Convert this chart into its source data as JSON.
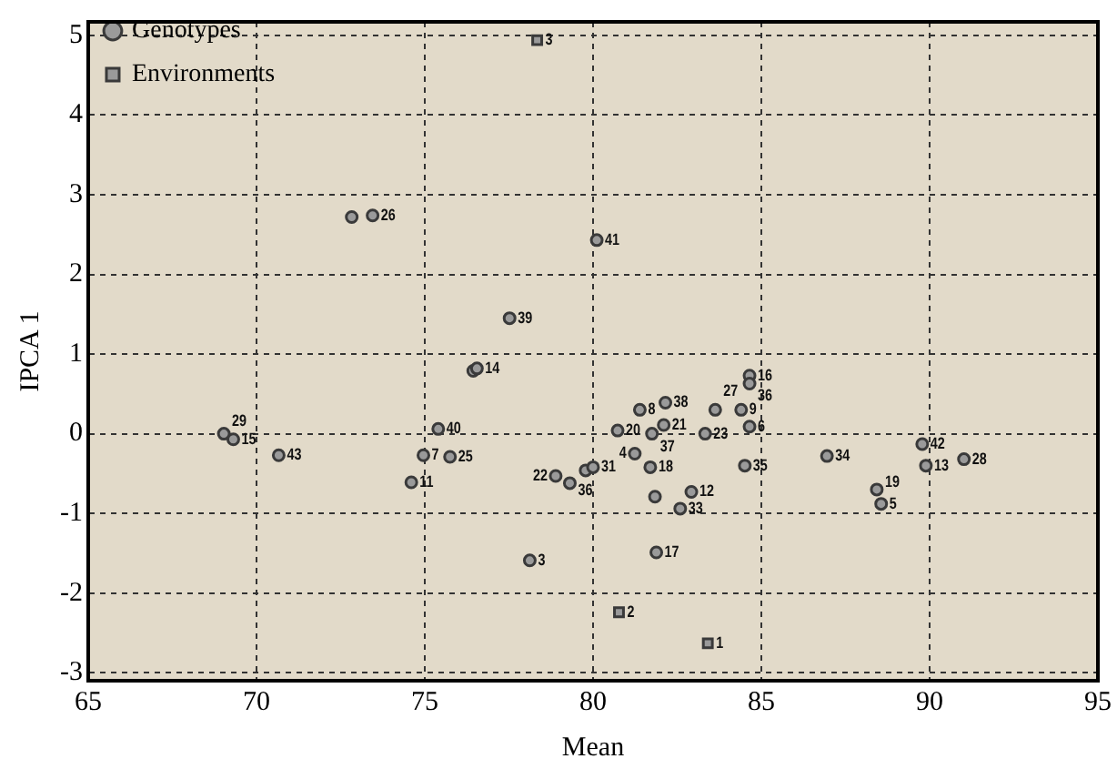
{
  "chart_data": {
    "type": "scatter",
    "xlabel": "Mean",
    "ylabel": "IPCA 1",
    "xlim": [
      65,
      95
    ],
    "xticks": [
      65,
      70,
      75,
      80,
      85,
      90,
      95
    ],
    "ylim": [
      -3.1,
      5.17
    ],
    "yticks": [
      -3,
      -2,
      -1,
      0,
      1,
      2,
      3,
      4,
      5
    ],
    "grid": true,
    "legend": "top left",
    "series": [
      {
        "name": "Genotypes",
        "color": "#3a3a3a",
        "marker": "circle",
        "x": [
          72.83,
          73.45,
          80.11,
          77.52,
          76.44,
          76.55,
          84.65,
          84.65,
          81.39,
          82.15,
          83.63,
          84.4,
          84.65,
          75.4,
          80.73,
          82.1,
          81.75,
          83.33,
          69.03,
          69.31,
          70.66,
          74.96,
          75.75,
          74.6,
          81.24,
          81.7,
          84.51,
          86.95,
          89.78,
          89.89,
          91.02,
          88.43,
          88.56,
          78.89,
          79.31,
          79.78,
          80.0,
          81.84,
          82.92,
          82.59,
          78.12,
          81.88
        ],
        "values": [
          2.72,
          2.74,
          2.43,
          1.45,
          0.79,
          0.82,
          0.73,
          0.63,
          0.3,
          0.39,
          0.3,
          0.3,
          0.09,
          0.06,
          0.04,
          0.11,
          0.0,
          0.0,
          0.0,
          -0.07,
          -0.27,
          -0.27,
          -0.29,
          -0.61,
          -0.25,
          -0.42,
          -0.4,
          -0.28,
          -0.13,
          -0.4,
          -0.32,
          -0.7,
          -0.88,
          -0.53,
          -0.62,
          -0.46,
          -0.42,
          -0.79,
          -0.73,
          -0.94,
          -1.59,
          -1.49
        ]
      },
      {
        "name": "Environments",
        "color": "#3a3a3a",
        "marker": "square",
        "x": [
          78.34,
          80.77,
          83.41
        ],
        "values": [
          4.94,
          -2.24,
          -2.63
        ]
      }
    ],
    "annotations": [
      {
        "text": "26",
        "x": 73.45,
        "y": 2.74
      },
      {
        "text": "41",
        "x": 80.11,
        "y": 2.43
      },
      {
        "text": "39",
        "x": 77.52,
        "y": 1.45
      },
      {
        "text": "14",
        "x": 76.55,
        "y": 0.82
      },
      {
        "text": "16",
        "x": 84.65,
        "y": 0.73
      },
      {
        "text": "36",
        "x": 84.65,
        "y": 0.63
      },
      {
        "text": "8",
        "x": 81.39,
        "y": 0.3
      },
      {
        "text": "38",
        "x": 82.15,
        "y": 0.39
      },
      {
        "text": "27",
        "x": 83.63,
        "y": 0.3
      },
      {
        "text": "9",
        "x": 84.4,
        "y": 0.3
      },
      {
        "text": "6",
        "x": 84.65,
        "y": 0.09
      },
      {
        "text": "40",
        "x": 75.4,
        "y": 0.06
      },
      {
        "text": "20",
        "x": 80.73,
        "y": 0.04
      },
      {
        "text": "21",
        "x": 82.1,
        "y": 0.11
      },
      {
        "text": "37",
        "x": 81.75,
        "y": 0.0
      },
      {
        "text": "23",
        "x": 83.33,
        "y": 0.0
      },
      {
        "text": "29",
        "x": 69.03,
        "y": 0.0
      },
      {
        "text": "15",
        "x": 69.31,
        "y": -0.07
      },
      {
        "text": "43",
        "x": 70.66,
        "y": -0.27
      },
      {
        "text": "7",
        "x": 74.96,
        "y": -0.27
      },
      {
        "text": "25",
        "x": 75.75,
        "y": -0.29
      },
      {
        "text": "11",
        "x": 74.6,
        "y": -0.61
      },
      {
        "text": "4",
        "x": 81.24,
        "y": -0.25
      },
      {
        "text": "18",
        "x": 81.7,
        "y": -0.42
      },
      {
        "text": "35",
        "x": 84.51,
        "y": -0.4
      },
      {
        "text": "34",
        "x": 86.95,
        "y": -0.28
      },
      {
        "text": "42",
        "x": 89.78,
        "y": -0.13
      },
      {
        "text": "13",
        "x": 89.89,
        "y": -0.4
      },
      {
        "text": "28",
        "x": 91.02,
        "y": -0.32
      },
      {
        "text": "19",
        "x": 88.43,
        "y": -0.7
      },
      {
        "text": "5",
        "x": 88.56,
        "y": -0.88
      },
      {
        "text": "22",
        "x": 78.89,
        "y": -0.53
      },
      {
        "text": "36",
        "x": 79.31,
        "y": -0.62
      },
      {
        "text": "31",
        "x": 80.0,
        "y": -0.42
      },
      {
        "text": "12",
        "x": 82.92,
        "y": -0.73
      },
      {
        "text": "33",
        "x": 82.59,
        "y": -0.94
      },
      {
        "text": "3",
        "x": 78.12,
        "y": -1.59
      },
      {
        "text": "17",
        "x": 81.88,
        "y": -1.49
      },
      {
        "text": "3",
        "x": 78.34,
        "y": 4.94
      },
      {
        "text": "2",
        "x": 80.77,
        "y": -2.24
      },
      {
        "text": "1",
        "x": 83.41,
        "y": -2.63
      }
    ]
  }
}
